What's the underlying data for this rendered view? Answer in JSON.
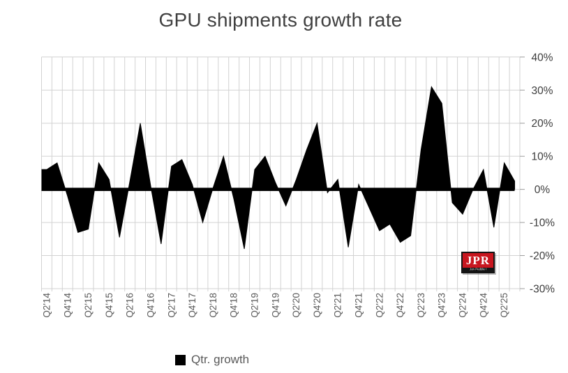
{
  "header": {
    "title": "GPU shipments growth rate"
  },
  "legend": {
    "label": "Qtr. growth",
    "marker_color": "#000000"
  },
  "logo": {
    "text": "JPR",
    "subtext": "Jon Peddie Research",
    "bg": "#c8161f",
    "fg": "#ffffff"
  },
  "chart_data": {
    "type": "area",
    "title": "GPU shipments growth rate",
    "series_name": "Qtr. growth",
    "categories": [
      "Q2'14",
      "Q3'14",
      "Q4'14",
      "Q1'15",
      "Q2'15",
      "Q3'15",
      "Q4'15",
      "Q1'16",
      "Q2'16",
      "Q3'16",
      "Q4'16",
      "Q1'17",
      "Q2'17",
      "Q3'17",
      "Q4'17",
      "Q1'18",
      "Q2'18",
      "Q3'18",
      "Q4'18",
      "Q1'19",
      "Q2'19",
      "Q3'19",
      "Q4'19",
      "Q1'20",
      "Q2'20",
      "Q3'20",
      "Q4'20",
      "Q1'21",
      "Q2'21",
      "Q3'21",
      "Q4'21",
      "Q1'22",
      "Q2'22",
      "Q3'22",
      "Q4'22",
      "Q1'23",
      "Q2'23",
      "Q3'23",
      "Q4'23",
      "Q1'24",
      "Q2'24",
      "Q3'24",
      "Q4'24",
      "Q1'25",
      "Q2'25",
      "Q3'25"
    ],
    "values": [
      6,
      8,
      -2,
      -13,
      -12,
      8,
      3,
      -14.5,
      2.5,
      20,
      1,
      -16.5,
      7,
      9,
      1.5,
      -10,
      0.5,
      10,
      -3,
      -18,
      6,
      10,
      2,
      -5,
      3,
      12,
      20,
      -1,
      3,
      -17.5,
      1.5,
      -5.5,
      -12.5,
      -10.5,
      -16,
      -14,
      12,
      31,
      26,
      -4,
      -7.5,
      0,
      6,
      -11.5,
      8,
      2.5
    ],
    "xlabel": "",
    "ylabel": "",
    "ylim": [
      -30,
      40
    ],
    "y_ticks": [
      40,
      30,
      20,
      10,
      0,
      -10,
      -20,
      -30
    ],
    "y_tick_suffix": "%",
    "x_label_every": 2,
    "grid": true,
    "legend_position": "bottom",
    "fill_color": "#000000",
    "zero_line_color": "#000000",
    "gridline_color": "#d2d2d2",
    "y_tick_color": "#3d3d3d",
    "x_tick_color": "#595959"
  }
}
